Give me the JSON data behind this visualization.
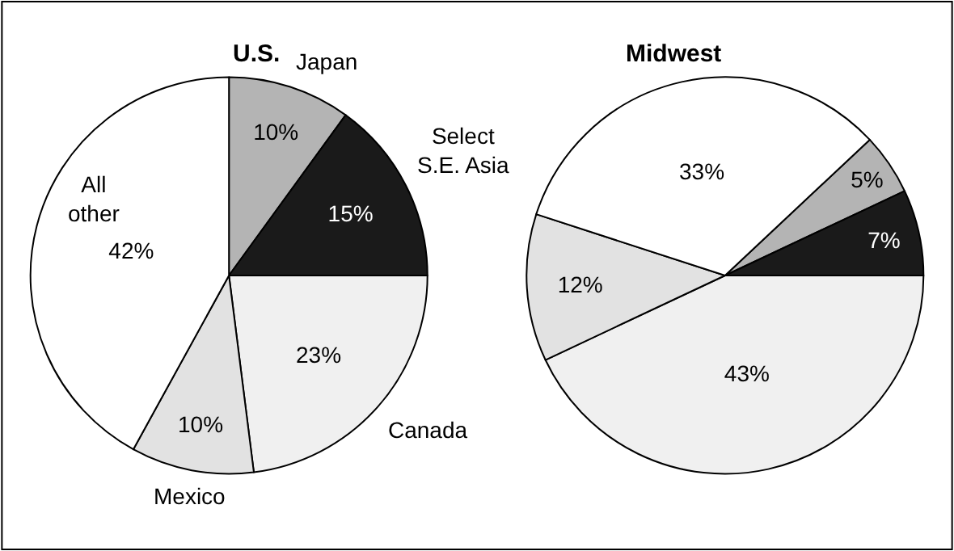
{
  "chart_data": [
    {
      "type": "pie",
      "title": "U.S.",
      "categories": [
        "Japan",
        "Select S.E. Asia",
        "Canada",
        "Mexico",
        "All other"
      ],
      "values": [
        10,
        15,
        23,
        10,
        42
      ],
      "value_labels": [
        "10%",
        "15%",
        "23%",
        "10%",
        "42%"
      ],
      "colors": [
        "#b4b4b4",
        "#1a1a1a",
        "#f0f0f0",
        "#e2e2e2",
        "#ffffff"
      ]
    },
    {
      "type": "pie",
      "title": "Midwest",
      "categories": [
        null,
        null,
        null,
        null,
        null
      ],
      "values": [
        5,
        7,
        43,
        12,
        33
      ],
      "value_labels": [
        "5%",
        "7%",
        "43%",
        "12%",
        "33%"
      ],
      "colors": [
        "#b4b4b4",
        "#1a1a1a",
        "#f0f0f0",
        "#e2e2e2",
        "#ffffff"
      ]
    }
  ]
}
